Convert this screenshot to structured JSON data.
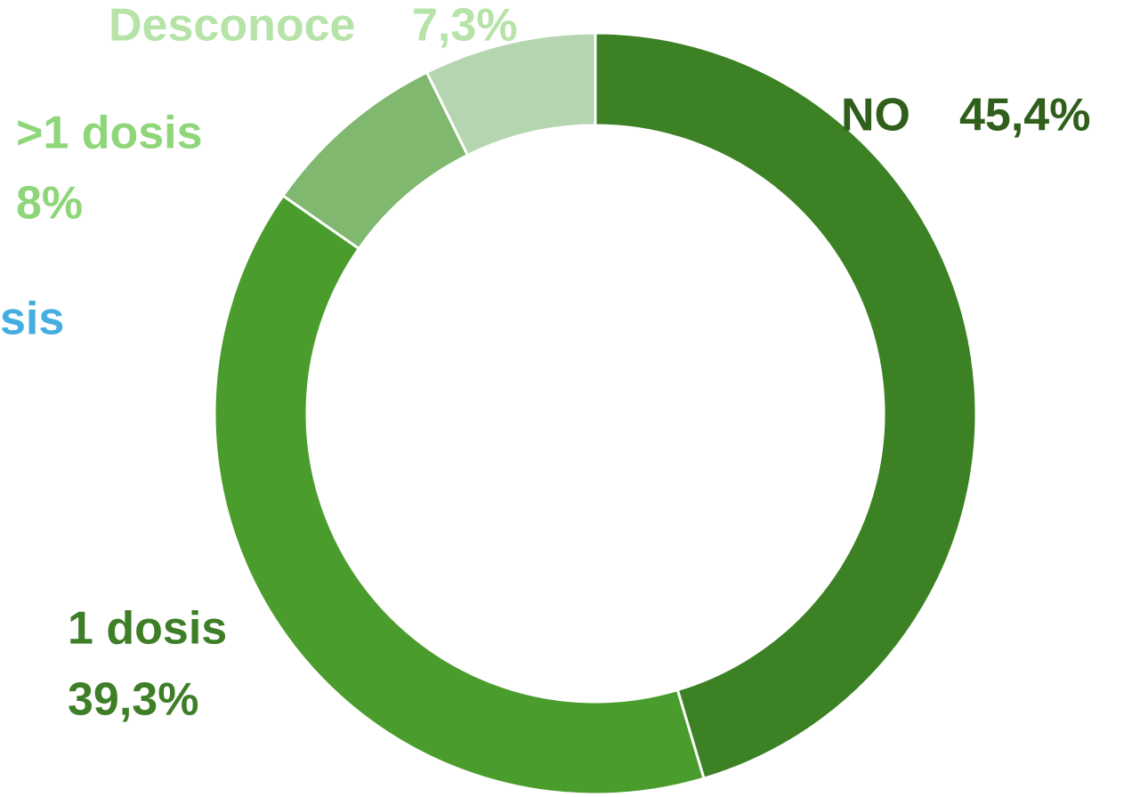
{
  "chart_data": {
    "type": "donut",
    "categories": [
      "NO",
      "1 dosis",
      ">1 dosis",
      "Desconoce"
    ],
    "values": [
      45.4,
      39.3,
      8,
      7.3
    ],
    "value_labels": [
      "45,4%",
      "39,3%",
      "8%",
      "7,3%"
    ],
    "colors": [
      "#3c8224",
      "#4a9c2c",
      "#80b870",
      "#b5d5b0"
    ],
    "label_colors": [
      "#2f5f1b",
      "#3d7e27",
      "#8fd67a",
      "#b6e3a7"
    ],
    "annotation": {
      "text": "sis",
      "color": "#45ade0"
    }
  }
}
